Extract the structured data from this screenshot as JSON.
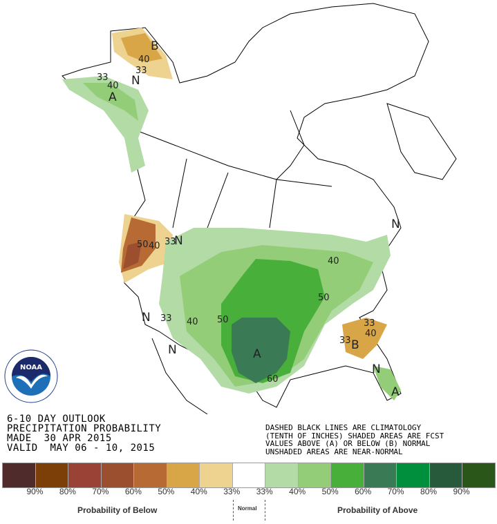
{
  "header": {
    "line1": "6-10 DAY OUTLOOK",
    "line2": "PRECIPITATION PROBABILITY",
    "line3": "MADE  30 APR 2015",
    "line4": "VALID  MAY 06 - 10, 2015"
  },
  "note": {
    "line1": "DASHED BLACK LINES ARE CLIMATOLOGY",
    "line2": "(TENTH OF INCHES) SHADED AREAS ARE FCST",
    "line3": "VALUES ABOVE (A) OR BELOW (B) NORMAL",
    "line4": "UNSHADED AREAS ARE NEAR-NORMAL"
  },
  "logo": {
    "text": "NOAA",
    "ring_text": "NATIONAL OCEANIC AND ATMOSPHERIC ADMINISTRATION · U.S. DEPARTMENT OF COMMERCE"
  },
  "legend": {
    "colors": [
      "#4f2b2b",
      "#7d3f08",
      "#994235",
      "#9c4f2e",
      "#b86a35",
      "#d8a547",
      "#eed28f",
      "#ffffff",
      "#b3dba6",
      "#93cd77",
      "#48b03a",
      "#3a7b55",
      "#008f3d",
      "#275a3b",
      "#2b5619"
    ],
    "ticks": [
      "90%",
      "80%",
      "70%",
      "60%",
      "50%",
      "40%",
      "33%",
      "33%",
      "40%",
      "50%",
      "60%",
      "70%",
      "80%",
      "90%"
    ],
    "below_label": "Probability of Below",
    "normal_label": "Normal",
    "above_label": "Probability of Above"
  },
  "map_labels": {
    "ak_n": {
      "b": "B",
      "c40": "40",
      "c33": "33",
      "n": "N"
    },
    "ak_s": {
      "c33": "33",
      "c40": "40",
      "a": "A"
    },
    "pnw": {
      "c50": "50",
      "c40": "40",
      "c33": "33",
      "n": "N"
    },
    "west": {
      "n1": "N",
      "n2": "N",
      "c33": "33"
    },
    "central": {
      "c40": "40",
      "c50": "50",
      "a": "A",
      "c60": "60",
      "c50e": "50",
      "c40ne": "40"
    },
    "se": {
      "c33a": "33",
      "b": "B",
      "c40": "40",
      "c33b": "33",
      "n": "N",
      "a": "A"
    },
    "ne": {
      "n": "N"
    }
  }
}
